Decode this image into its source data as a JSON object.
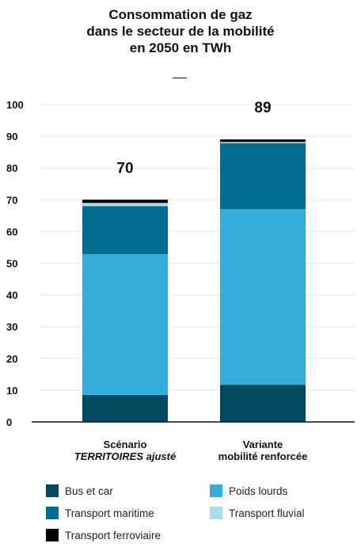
{
  "title_lines": [
    "Consommation de gaz",
    "dans le secteur de la mobilité",
    "en 2050 en TWh"
  ],
  "chart_data": {
    "type": "bar",
    "stacked": true,
    "title": "Consommation de gaz dans le secteur de la mobilité en 2050 en TWh",
    "categories": [
      [
        "Scénario",
        "TERRITOIRES ajusté"
      ],
      [
        "Variante",
        "mobilité renforcée"
      ]
    ],
    "series": [
      {
        "name": "Bus et car",
        "color": "#00495f",
        "values": [
          8.5,
          11.7
        ]
      },
      {
        "name": "Poids lourds",
        "color": "#35acd9",
        "values": [
          44.3,
          55.3
        ]
      },
      {
        "name": "Transport maritime",
        "color": "#006c91",
        "values": [
          15.2,
          20.8
        ]
      },
      {
        "name": "Transport fluvial",
        "color": "#a7dce9",
        "values": [
          1.0,
          0.4
        ]
      },
      {
        "name": "Transport ferroviaire",
        "color": "#000000",
        "values": [
          1.0,
          0.8
        ]
      }
    ],
    "totals": [
      "70",
      "89"
    ],
    "yticks": [
      0,
      10,
      20,
      30,
      40,
      50,
      60,
      70,
      80,
      90,
      100
    ],
    "ylim": [
      0,
      100
    ],
    "grid": true,
    "legend_position": "bottom"
  }
}
